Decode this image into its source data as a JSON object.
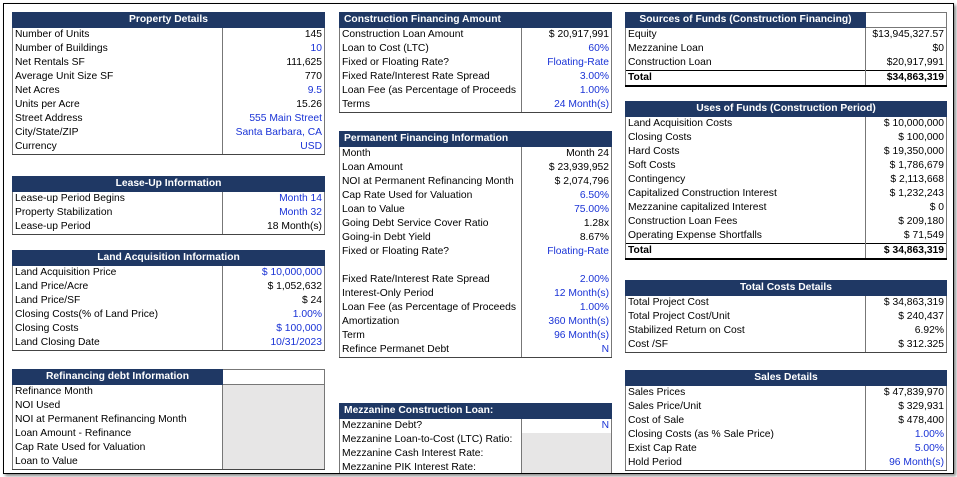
{
  "property": {
    "title": "Property Details",
    "rows": [
      {
        "label": "Number of Units",
        "value": "145",
        "blue": false
      },
      {
        "label": "Number of Buildings",
        "value": "10",
        "blue": true
      },
      {
        "label": "Net Rentals SF",
        "value": "111,625",
        "blue": false
      },
      {
        "label": "Average Unit Size SF",
        "value": "770",
        "blue": false
      },
      {
        "label": "Net Acres",
        "value": "9.5",
        "blue": true
      },
      {
        "label": "Units per Acre",
        "value": "15.26",
        "blue": false
      },
      {
        "label": "Street Address",
        "value": "555 Main Street",
        "blue": true
      },
      {
        "label": "City/State/ZIP",
        "value": "Santa Barbara, CA",
        "blue": true
      },
      {
        "label": "Currency",
        "value": "USD",
        "blue": true
      }
    ]
  },
  "leaseup": {
    "title": "Lease-Up Information",
    "rows": [
      {
        "label": "Lease-up Period Begins",
        "value": "Month 14",
        "blue": true
      },
      {
        "label": "Property Stabilization",
        "value": "Month 32",
        "blue": true
      },
      {
        "label": "Lease-up Period",
        "value": "18 Month(s)",
        "blue": false
      }
    ]
  },
  "land": {
    "title": "Land Acquisition Information",
    "rows": [
      {
        "label": "Land Acquisition  Price",
        "value": "$ 10,000,000",
        "blue": true
      },
      {
        "label": "Land Price/Acre",
        "value": "$ 1,052,632",
        "blue": false
      },
      {
        "label": "Land Price/SF",
        "value": "$ 24",
        "blue": false
      },
      {
        "label": "Closing Costs(% of Land Price)",
        "value": "1.00%",
        "blue": true
      },
      {
        "label": "Closing Costs",
        "value": "$ 100,000",
        "blue": true
      },
      {
        "label": "Land Closing Date",
        "value": "10/31/2023",
        "blue": true
      }
    ]
  },
  "refi": {
    "title": "Refinancing debt Information",
    "rows": [
      {
        "label": "Refinance Month",
        "value": "",
        "blue": false
      },
      {
        "label": "NOI Used",
        "value": "",
        "blue": false
      },
      {
        "label": "NOI at Permanent Refinancing Month",
        "value": "",
        "blue": false
      },
      {
        "label": "Loan Amount - Refinance",
        "value": "",
        "blue": false
      },
      {
        "label": "Cap Rate Used for Valuation",
        "value": "",
        "blue": false
      },
      {
        "label": "Loan to Value",
        "value": "",
        "blue": false
      }
    ]
  },
  "construction": {
    "title": "Construction Financing Amount",
    "rows": [
      {
        "label": "Construction Loan Amount",
        "value": "$ 20,917,991",
        "blue": false
      },
      {
        "label": "Loan to Cost (LTC)",
        "value": "60%",
        "blue": true
      },
      {
        "label": "Fixed or Floating Rate?",
        "value": "Floating-Rate",
        "blue": true
      },
      {
        "label": "Fixed Rate/Interest Rate Spread",
        "value": "3.00%",
        "blue": true
      },
      {
        "label": "Loan Fee (as Percentage of Proceeds",
        "value": "1.00%",
        "blue": true
      },
      {
        "label": "Terms",
        "value": "24 Month(s)",
        "blue": true
      }
    ]
  },
  "permanent": {
    "title": "Permanent Financing Information",
    "rows": [
      {
        "label": "Month",
        "value": "Month 24",
        "blue": false
      },
      {
        "label": "Loan Amount",
        "value": "$ 23,939,952",
        "blue": false
      },
      {
        "label": "NOI at Permanent Refinancing Month",
        "value": "$ 2,074,796",
        "blue": false
      },
      {
        "label": "Cap Rate Used for Valuation",
        "value": "6.50%",
        "blue": true
      },
      {
        "label": "Loan to Value",
        "value": "75.00%",
        "blue": true
      },
      {
        "label": "Going Debt Service Cover Ratio",
        "value": "1.28x",
        "blue": false
      },
      {
        "label": "Going-in Debt Yield",
        "value": "8.67%",
        "blue": false
      },
      {
        "label": "Fixed or Floating Rate?",
        "value": "Floating-Rate",
        "blue": true
      },
      {
        "label": "",
        "value": "",
        "blue": false
      },
      {
        "label": "Fixed Rate/Interest Rate Spread",
        "value": "2.00%",
        "blue": true
      },
      {
        "label": "Interest-Only Period",
        "value": "12 Month(s)",
        "blue": true
      },
      {
        "label": "Loan Fee (as Percentage of Proceeds",
        "value": "1.00%",
        "blue": true
      },
      {
        "label": "Amortization",
        "value": "360 Month(s)",
        "blue": true
      },
      {
        "label": "Term",
        "value": "96 Month(s)",
        "blue": true
      },
      {
        "label": "Refince Permanet Debt",
        "value": "N",
        "blue": true
      }
    ]
  },
  "mezz": {
    "title": "Mezzanine Construction Loan:",
    "rows": [
      {
        "label": "Mezzanine Debt?",
        "value": "N",
        "blue": true,
        "gray": false
      },
      {
        "label": "Mezzanine Loan-to-Cost (LTC) Ratio:",
        "value": "",
        "blue": false,
        "gray": true
      },
      {
        "label": "Mezzanine Cash Interest Rate:",
        "value": "",
        "blue": false,
        "gray": true
      },
      {
        "label": "Mezzanine PIK Interest Rate:",
        "value": "",
        "blue": false,
        "gray": true
      }
    ]
  },
  "sources": {
    "title": "Sources of Funds (Construction Financing)",
    "rows": [
      {
        "label": "Equity",
        "value": "$13,945,327.57"
      },
      {
        "label": "Mezzanine Loan",
        "value": "$0"
      },
      {
        "label": "Construction Loan",
        "value": "$20,917,991"
      }
    ],
    "total_label": "Total",
    "total_value": "$34,863,319"
  },
  "uses": {
    "title": "Uses of Funds (Construction Period)",
    "rows": [
      {
        "label": "Land Acquisition Costs",
        "value": "$ 10,000,000"
      },
      {
        "label": "Closing Costs",
        "value": "$ 100,000"
      },
      {
        "label": "Hard Costs",
        "value": "$ 19,350,000"
      },
      {
        "label": "Soft Costs",
        "value": "$ 1,786,679"
      },
      {
        "label": "Contingency",
        "value": "$ 2,113,668"
      },
      {
        "label": "Capitalized Construction Interest",
        "value": "$ 1,232,243"
      },
      {
        "label": "Mezzanine capitalized Interest",
        "value": "$ 0"
      },
      {
        "label": "Construction Loan Fees",
        "value": "$ 209,180"
      },
      {
        "label": "Operating Expense Shortfalls",
        "value": "$ 71,549"
      }
    ],
    "total_label": "Total",
    "total_value": "$ 34,863,319"
  },
  "totalcosts": {
    "title": "Total Costs Details",
    "rows": [
      {
        "label": "Total Project Cost",
        "value": "$ 34,863,319",
        "blue": false
      },
      {
        "label": "Total Project Cost/Unit",
        "value": "$ 240,437",
        "blue": false
      },
      {
        "label": "Stabilized Return on Cost",
        "value": "6.92%",
        "blue": false
      },
      {
        "label": "Cost /SF",
        "value": "$ 312.325",
        "blue": false
      }
    ]
  },
  "sales": {
    "title": "Sales Details",
    "rows": [
      {
        "label": "Sales Prices",
        "value": "$ 47,839,970",
        "blue": false
      },
      {
        "label": "Sales Price/Unit",
        "value": "$ 329,931",
        "blue": false
      },
      {
        "label": "Cost of Sale",
        "value": "$ 478,400",
        "blue": false
      },
      {
        "label": "Closing Costs (as % Sale Price)",
        "value": "1.00%",
        "blue": true
      },
      {
        "label": "Exist Cap Rate",
        "value": "5.00%",
        "blue": true
      },
      {
        "label": "Hold Period",
        "value": "96 Month(s)",
        "blue": true
      }
    ]
  }
}
